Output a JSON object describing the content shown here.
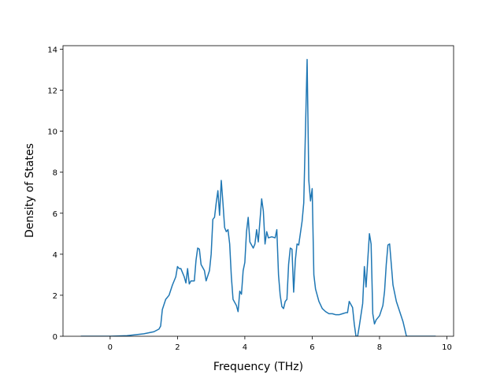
{
  "chart_data": {
    "type": "line",
    "xlabel": "Frequency (THz)",
    "ylabel": "Density of States",
    "color": "#1f77b4",
    "xlim": [
      -1.4,
      10.2
    ],
    "ylim": [
      0,
      14.17
    ],
    "xticks": [
      0,
      2,
      4,
      6,
      8,
      10
    ],
    "yticks": [
      0,
      2,
      4,
      6,
      8,
      10,
      12,
      14
    ],
    "x": [
      -0.87,
      0,
      0.5,
      1.0,
      1.3,
      1.45,
      1.5,
      1.55,
      1.65,
      1.75,
      1.85,
      1.95,
      2.0,
      2.05,
      2.1,
      2.2,
      2.25,
      2.3,
      2.35,
      2.4,
      2.5,
      2.55,
      2.6,
      2.65,
      2.7,
      2.8,
      2.85,
      2.95,
      3.0,
      3.05,
      3.1,
      3.15,
      3.2,
      3.25,
      3.3,
      3.35,
      3.4,
      3.45,
      3.5,
      3.55,
      3.6,
      3.65,
      3.75,
      3.8,
      3.85,
      3.9,
      3.95,
      4.0,
      4.05,
      4.1,
      4.15,
      4.25,
      4.3,
      4.35,
      4.4,
      4.5,
      4.55,
      4.6,
      4.65,
      4.7,
      4.8,
      4.9,
      4.95,
      5.0,
      5.05,
      5.1,
      5.15,
      5.2,
      5.25,
      5.3,
      5.35,
      5.4,
      5.45,
      5.5,
      5.55,
      5.6,
      5.7,
      5.75,
      5.8,
      5.85,
      5.9,
      5.95,
      6.0,
      6.05,
      6.1,
      6.2,
      6.3,
      6.4,
      6.5,
      6.6,
      6.7,
      6.8,
      6.9,
      7.0,
      7.05,
      7.1,
      7.2,
      7.25,
      7.3,
      7.35,
      7.4,
      7.5,
      7.55,
      7.6,
      7.7,
      7.75,
      7.8,
      7.85,
      7.9,
      8.0,
      8.1,
      8.15,
      8.2,
      8.25,
      8.3,
      8.35,
      8.4,
      8.5,
      8.6,
      8.7,
      8.8,
      9.0,
      9.67
    ],
    "values": [
      0,
      0,
      0.03,
      0.12,
      0.22,
      0.35,
      0.5,
      1.3,
      1.8,
      2.0,
      2.5,
      2.9,
      3.4,
      3.3,
      3.3,
      2.9,
      2.6,
      3.3,
      2.55,
      2.7,
      2.7,
      3.7,
      4.3,
      4.25,
      3.5,
      3.2,
      2.7,
      3.2,
      4.0,
      5.7,
      5.8,
      6.5,
      7.1,
      5.9,
      7.6,
      6.5,
      5.3,
      5.1,
      5.2,
      4.5,
      2.9,
      1.8,
      1.5,
      1.2,
      2.2,
      2.05,
      3.2,
      3.6,
      5.1,
      5.8,
      4.6,
      4.3,
      4.5,
      5.2,
      4.6,
      6.7,
      6.1,
      4.5,
      5.1,
      4.8,
      4.85,
      4.8,
      5.2,
      3.0,
      2.0,
      1.45,
      1.35,
      1.7,
      1.8,
      3.5,
      4.3,
      4.25,
      2.15,
      3.7,
      4.5,
      4.45,
      5.6,
      6.5,
      10,
      13.5,
      7.6,
      6.6,
      7.2,
      3.0,
      2.3,
      1.7,
      1.35,
      1.2,
      1.1,
      1.1,
      1.05,
      1.05,
      1.1,
      1.15,
      1.15,
      1.7,
      1.4,
      0.6,
      0,
      0,
      0.5,
      1.6,
      3.4,
      2.4,
      5.0,
      4.5,
      1.1,
      0.6,
      0.8,
      1.0,
      1.5,
      2.2,
      3.5,
      4.45,
      4.5,
      3.5,
      2.5,
      1.7,
      1.2,
      0.7,
      0,
      0,
      0
    ]
  }
}
